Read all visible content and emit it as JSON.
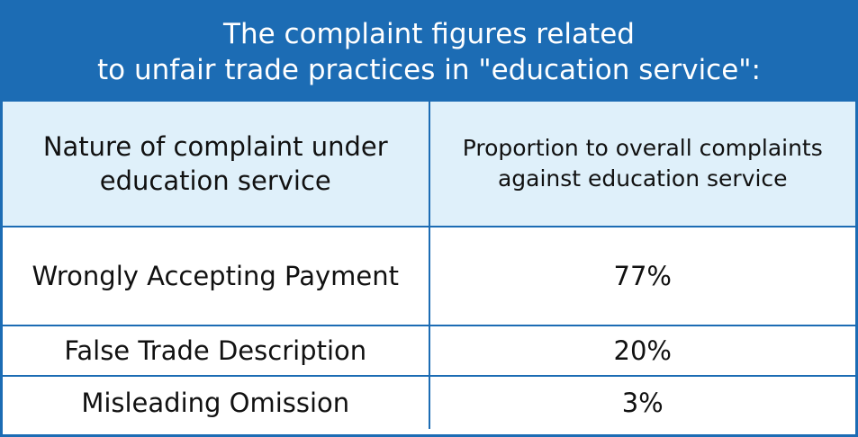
{
  "title": {
    "lines": [
      "The complaint figures related",
      "to unfair trade practices in \"education service\":"
    ]
  },
  "table": {
    "header": [
      "Nature of complaint under education service",
      "Proportion to overall complaints against education service"
    ],
    "rows": [
      [
        "Wrongly Accepting Payment",
        "77%"
      ],
      [
        "False Trade Description",
        "20%"
      ],
      [
        "Misleading Omission",
        "3%"
      ]
    ]
  }
}
